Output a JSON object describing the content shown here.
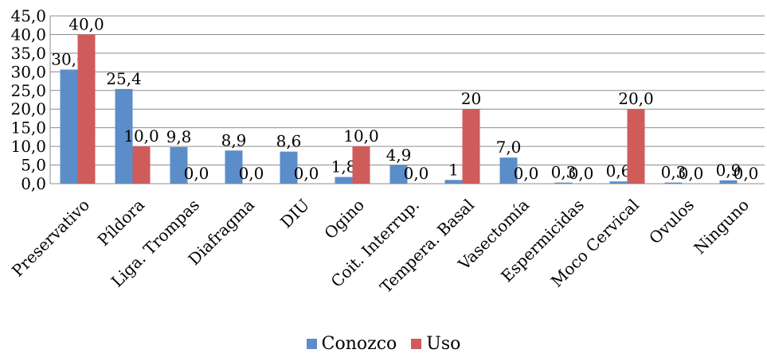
{
  "chart_data": {
    "type": "bar",
    "title": "",
    "xlabel": "",
    "ylabel": "",
    "ylim": [
      0,
      45
    ],
    "yticks": [
      "0,0",
      "5,0",
      "10,0",
      "15,0",
      "20,0",
      "25,0",
      "30,0",
      "35,0",
      "40,0",
      "45,0"
    ],
    "grid": true,
    "legend_position": "bottom",
    "categories": [
      "Preservativo",
      "Píldora",
      "Liga. Trompas",
      "Diafragma",
      "DIU",
      "Ogino",
      "Coit. Interrup.",
      "Tempera. Basal",
      "Vasectomía",
      "Espermicidas",
      "Moco Cervical",
      "Ovulos",
      "Ninguno"
    ],
    "series": [
      {
        "name": "Conozco",
        "color": "#5B8DC9",
        "values": [
          30.6,
          25.4,
          9.8,
          8.9,
          8.6,
          1.8,
          4.9,
          1,
          7.0,
          0.3,
          0.6,
          0.3,
          0.9
        ],
        "labels": [
          "30,6",
          "25,4",
          "9,8",
          "8,9",
          "8,6",
          "1,8",
          "4,9",
          "1",
          "7,0",
          "0,3",
          "0,6",
          "0,3",
          "0,9"
        ]
      },
      {
        "name": "Uso",
        "color": "#CF5B5B",
        "values": [
          40.0,
          10.0,
          0.0,
          0.0,
          0.0,
          10.0,
          0.0,
          20,
          0.0,
          0.0,
          20.0,
          0.0,
          0.0
        ],
        "labels": [
          "40,0",
          "10,0",
          "0,0",
          "0,0",
          "0,0",
          "10,0",
          "0,0",
          "20",
          "0,0",
          "0,0",
          "20,0",
          "0,0",
          "0,0"
        ]
      }
    ]
  }
}
